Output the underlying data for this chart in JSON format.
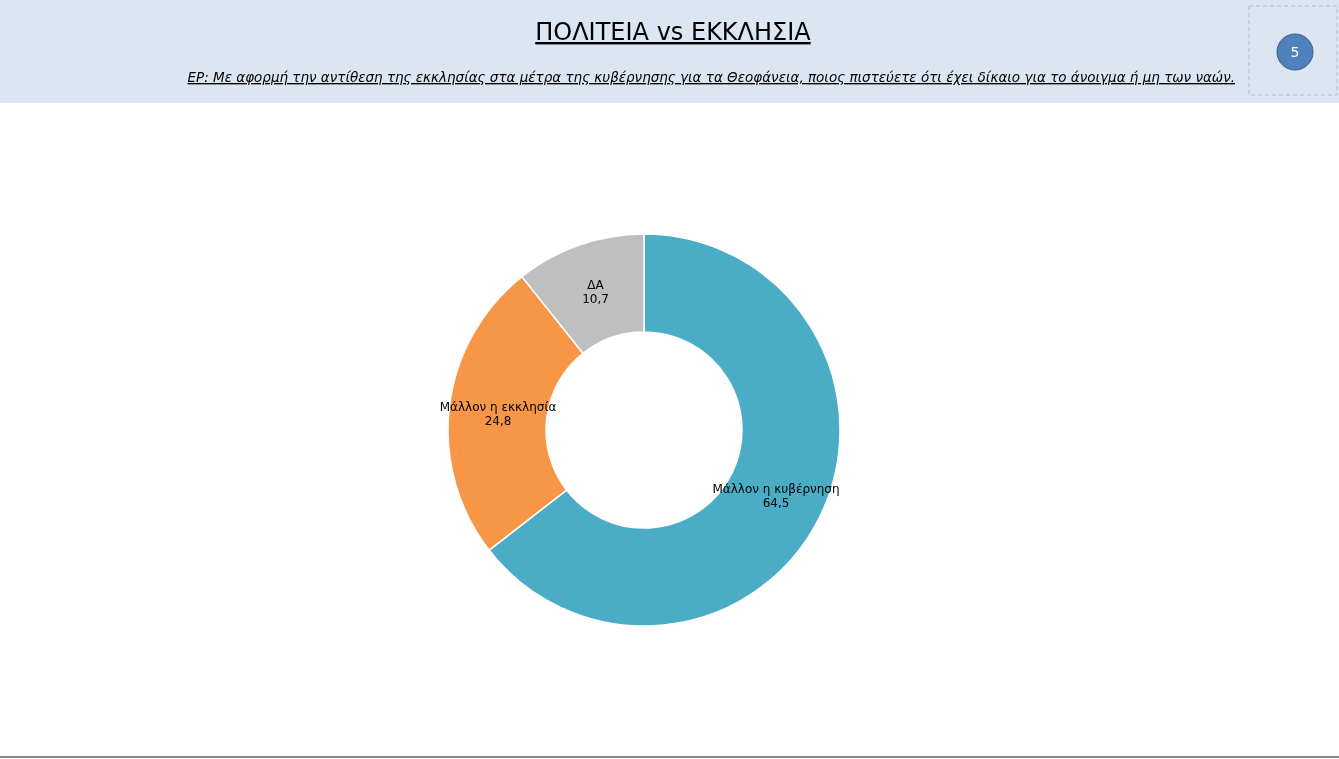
{
  "chart_data": {
    "type": "donut",
    "title": "ΠΟΛΙΤΕΙΑ vs ΕΚΚΛΗΣΙΑ",
    "subtitle": "ΕΡ: Με αφορμή την αντίθεση της εκκλησίας στα μέτρα της κυβέρνησης για τα Θεοφάνεια, ποιος πιστεύετε ότι έχει δίκαιο για το άνοιγμα ή μη των ναών.",
    "categories": [
      "Μάλλον η κυβέρνηση",
      "Μάλλον η εκκλησία",
      "ΔΑ"
    ],
    "values": [
      64.5,
      24.8,
      10.7
    ],
    "colors": [
      "#4bacc6",
      "#f79646",
      "#bfbfbf"
    ],
    "value_labels": [
      "64,5",
      "24,8",
      "10,7"
    ],
    "annotations": [
      "5"
    ]
  }
}
